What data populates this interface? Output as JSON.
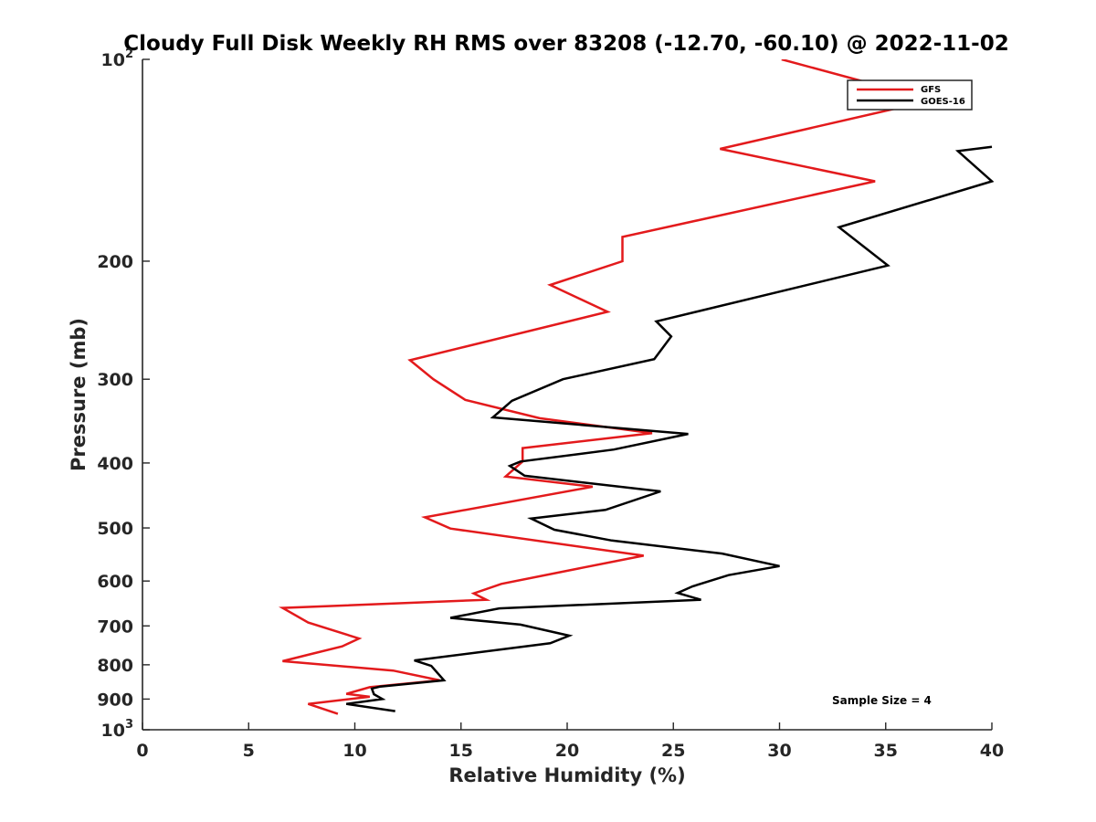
{
  "chart_data": {
    "type": "line",
    "title": "Cloudy Full Disk Weekly RH RMS over 83208 (-12.70, -60.10) @ 2022-11-02",
    "xlabel": "Relative Humidity (%)",
    "ylabel": "Pressure (mb)",
    "xlim": [
      0,
      40
    ],
    "ylim": [
      100,
      1000
    ],
    "yscale": "log",
    "y_reversed": true,
    "grid": false,
    "legend_position": "top-right",
    "x_ticks": [
      {
        "value": 0,
        "label": "0"
      },
      {
        "value": 5,
        "label": "5"
      },
      {
        "value": 10,
        "label": "10"
      },
      {
        "value": 15,
        "label": "15"
      },
      {
        "value": 20,
        "label": "20"
      },
      {
        "value": 25,
        "label": "25"
      },
      {
        "value": 30,
        "label": "30"
      },
      {
        "value": 35,
        "label": "35"
      },
      {
        "value": 40,
        "label": "40"
      }
    ],
    "y_ticks": [
      {
        "value": 100,
        "base": "10",
        "exp": "2"
      },
      {
        "value": 200,
        "label": "200"
      },
      {
        "value": 300,
        "label": "300"
      },
      {
        "value": 400,
        "label": "400"
      },
      {
        "value": 500,
        "label": "500"
      },
      {
        "value": 600,
        "label": "600"
      },
      {
        "value": 700,
        "label": "700"
      },
      {
        "value": 800,
        "label": "800"
      },
      {
        "value": 900,
        "label": "900"
      },
      {
        "value": 1000,
        "base": "10",
        "exp": "3"
      }
    ],
    "series": [
      {
        "name": "GFS",
        "color": "#e31a1c",
        "points": [
          [
            30.1,
            100
          ],
          [
            37.2,
            115
          ],
          [
            27.2,
            136
          ],
          [
            34.5,
            152
          ],
          [
            22.6,
            184
          ],
          [
            22.6,
            200
          ],
          [
            19.2,
            217
          ],
          [
            21.9,
            238
          ],
          [
            12.6,
            281
          ],
          [
            13.7,
            300
          ],
          [
            15.2,
            322
          ],
          [
            18.7,
            343
          ],
          [
            24.0,
            361
          ],
          [
            17.9,
            380
          ],
          [
            17.9,
            398
          ],
          [
            17.1,
            419
          ],
          [
            21.2,
            434
          ],
          [
            13.3,
            482
          ],
          [
            14.5,
            501
          ],
          [
            23.6,
            550
          ],
          [
            20.5,
            575
          ],
          [
            16.9,
            606
          ],
          [
            15.6,
            626
          ],
          [
            16.2,
            640
          ],
          [
            6.6,
            658
          ],
          [
            7.8,
            692
          ],
          [
            10.2,
            731
          ],
          [
            9.4,
            751
          ],
          [
            7.8,
            773
          ],
          [
            6.6,
            790
          ],
          [
            11.8,
            816
          ],
          [
            14.0,
            844
          ],
          [
            10.7,
            864
          ],
          [
            9.6,
            884
          ],
          [
            10.7,
            893
          ],
          [
            7.8,
            915
          ],
          [
            9.2,
            947
          ]
        ]
      },
      {
        "name": "GOES-16",
        "color": "#000000",
        "points": [
          [
            40.0,
            135
          ],
          [
            38.4,
            137
          ],
          [
            40.0,
            152
          ],
          [
            32.8,
            178
          ],
          [
            35.1,
            203
          ],
          [
            24.2,
            246
          ],
          [
            24.9,
            259
          ],
          [
            24.1,
            280
          ],
          [
            19.8,
            300
          ],
          [
            17.4,
            323
          ],
          [
            16.5,
            342
          ],
          [
            25.7,
            362
          ],
          [
            22.2,
            382
          ],
          [
            17.8,
            398
          ],
          [
            17.3,
            404
          ],
          [
            18.0,
            418
          ],
          [
            24.4,
            441
          ],
          [
            21.8,
            470
          ],
          [
            18.3,
            484
          ],
          [
            19.4,
            503
          ],
          [
            22.1,
            522
          ],
          [
            27.3,
            546
          ],
          [
            30.0,
            570
          ],
          [
            27.6,
            588
          ],
          [
            25.9,
            611
          ],
          [
            25.2,
            625
          ],
          [
            26.3,
            640
          ],
          [
            16.8,
            659
          ],
          [
            14.5,
            681
          ],
          [
            17.8,
            697
          ],
          [
            20.1,
            724
          ],
          [
            19.2,
            743
          ],
          [
            12.8,
            788
          ],
          [
            13.6,
            803
          ],
          [
            14.2,
            844
          ],
          [
            11.2,
            862
          ],
          [
            10.8,
            868
          ],
          [
            10.9,
            885
          ],
          [
            11.3,
            900
          ],
          [
            9.6,
            915
          ],
          [
            11.9,
            938
          ]
        ]
      }
    ],
    "annotation": "Sample Size = 4"
  }
}
